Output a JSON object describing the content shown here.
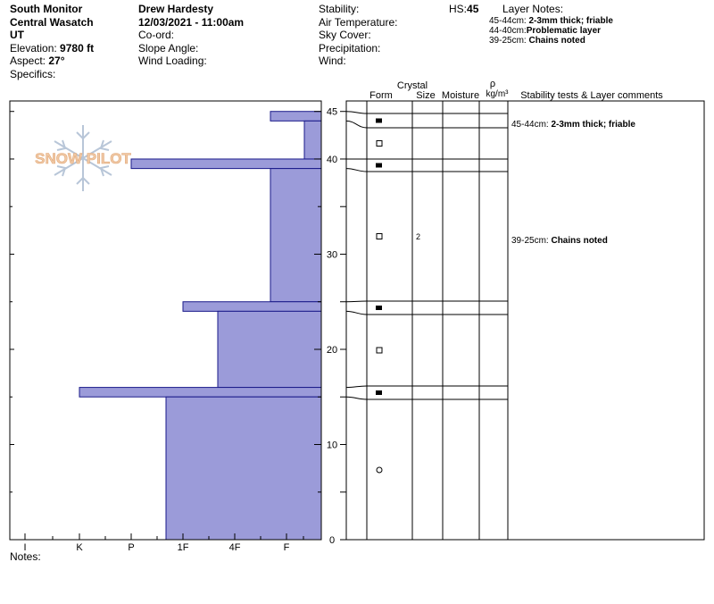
{
  "header": {
    "col1": {
      "location": "South Monitor",
      "range": "Central Wasatch",
      "state": "UT",
      "elevation_label": "Elevation:",
      "elevation_value": "9780 ft",
      "aspect_label": "Aspect:",
      "aspect_value": "27°",
      "specifics_label": "Specifics:"
    },
    "col2": {
      "observer": "Drew Hardesty",
      "datetime": "12/03/2021 - 11:00am",
      "coord_label": "Co-ord:",
      "slope_label": "Slope Angle:",
      "wind_loading_label": "Wind Loading:"
    },
    "col3": {
      "stability_label": "Stability:",
      "air_temp_label": "Air Temperature:",
      "sky_label": "Sky Cover:",
      "precip_label": "Precipitation:",
      "wind_label": "Wind:"
    },
    "hs_label": "HS:",
    "hs_value": "45",
    "layer_notes_label": "Layer Notes:",
    "layer_notes": [
      {
        "range": "45-44cm:",
        "text": "2-3mm thick; friable"
      },
      {
        "range": "44-40cm:",
        "text": "Problematic layer"
      },
      {
        "range": "39-25cm:",
        "text": "Chains noted"
      }
    ]
  },
  "footer": {
    "notes_label": "Notes:"
  },
  "watermark": {
    "text": "SNOW PILOT"
  },
  "table": {
    "col_form": "Form",
    "col_crystal": "Crystal",
    "col_size": "Size",
    "col_moisture": "Moisture",
    "col_rho": "ρ",
    "col_density_unit": "kg/m³",
    "col_comments": "Stability tests & Layer comments"
  },
  "chart_data": {
    "type": "bar",
    "hardness_axis": {
      "ticks": [
        "I",
        "K",
        "P",
        "1F",
        "4F",
        "F"
      ]
    },
    "height_axis": {
      "ticks": [
        "0",
        "10",
        "20",
        "30",
        "40",
        "45"
      ],
      "range": [
        0,
        45
      ],
      "units": "cm"
    },
    "layers": [
      {
        "top": 45,
        "bottom": 44,
        "hardness": "4F-"
      },
      {
        "top": 44,
        "bottom": 40,
        "hardness": "F+"
      },
      {
        "top": 40,
        "bottom": 39,
        "hardness": "P"
      },
      {
        "top": 39,
        "bottom": 25,
        "hardness": "4F-"
      },
      {
        "top": 25,
        "bottom": 24,
        "hardness": "1F+"
      },
      {
        "top": 24,
        "bottom": 16,
        "hardness": "4F+"
      },
      {
        "top": 16,
        "bottom": 15,
        "hardness": "K"
      },
      {
        "top": 15,
        "bottom": 0,
        "hardness": "1F-"
      }
    ],
    "grain_rows": [
      {
        "top": 45,
        "bottom": 44,
        "form": "filled-square",
        "size": "",
        "moisture": ""
      },
      {
        "top": 44,
        "bottom": 40,
        "form": "open-square",
        "size": "",
        "moisture": ""
      },
      {
        "top": 40,
        "bottom": 39,
        "form": "filled-square",
        "size": "",
        "moisture": ""
      },
      {
        "top": 39,
        "bottom": 25,
        "form": "open-square",
        "size": "2",
        "moisture": ""
      },
      {
        "top": 25,
        "bottom": 24,
        "form": "filled-square",
        "size": "",
        "moisture": ""
      },
      {
        "top": 24,
        "bottom": 16,
        "form": "open-square",
        "size": "",
        "moisture": ""
      },
      {
        "top": 16,
        "bottom": 15,
        "form": "filled-square",
        "size": "",
        "moisture": ""
      },
      {
        "top": 15,
        "bottom": 0,
        "form": "circle",
        "size": "",
        "moisture": ""
      }
    ],
    "comments": [
      {
        "layer_top": 45,
        "range": "45-44cm:",
        "text": "2-3mm thick; friable"
      },
      {
        "layer_top": 39,
        "range": "39-25cm:",
        "text": "Chains noted"
      }
    ],
    "colors": {
      "fill": "#9b9bd9",
      "stroke": "#1a1a8a"
    }
  }
}
